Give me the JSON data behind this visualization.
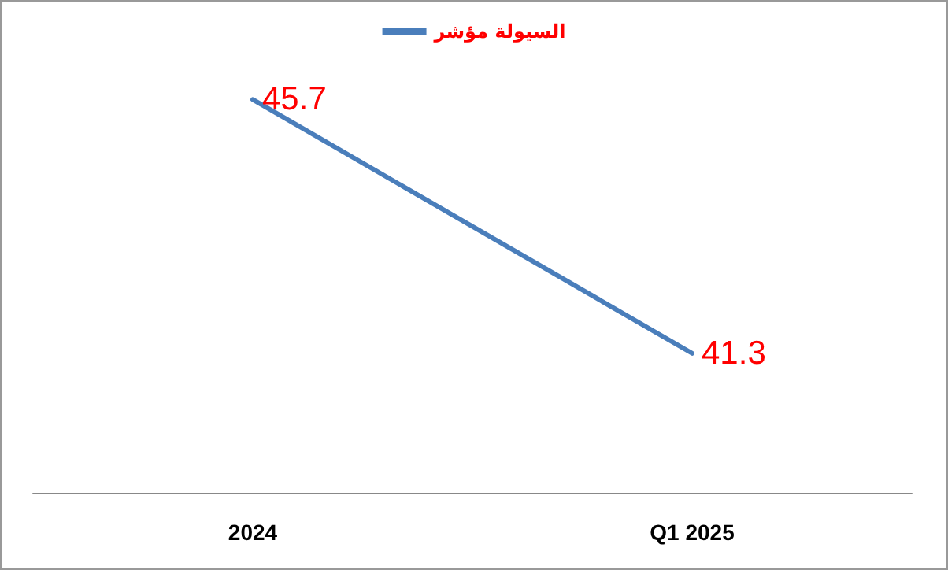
{
  "chart_data": {
    "type": "line",
    "categories": [
      "2024",
      "Q1 2025"
    ],
    "series": [
      {
        "name": "السيولة مؤشر",
        "color": "#4a7ebb",
        "values": [
          45.7,
          41.3
        ]
      }
    ],
    "tick_labels": "x",
    "grid": false,
    "legend": "top",
    "marker": "none",
    "line_style": "solid",
    "data_labels": true
  }
}
